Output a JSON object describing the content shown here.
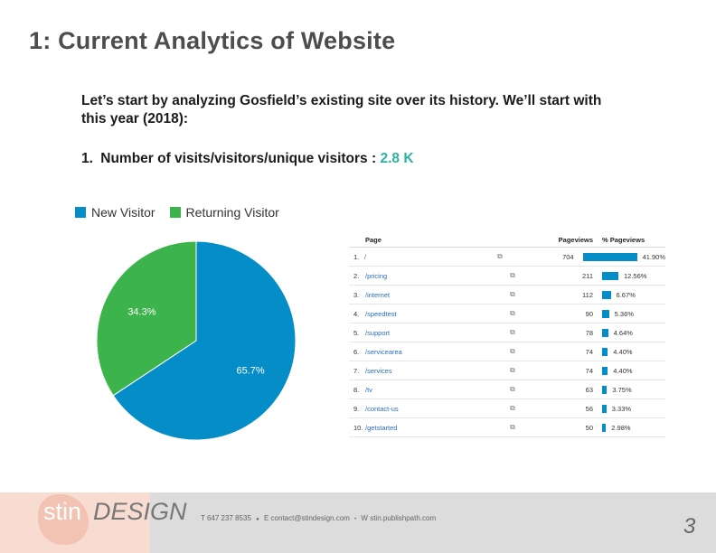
{
  "title": "1: Current Analytics of Website",
  "intro": "Let’s start by analyzing Gosfield’s existing site over its history. We’ll start with this year (2018):",
  "point": {
    "number": "1.",
    "label": "Number of visits/visitors/unique visitors :",
    "value": "2.8 K"
  },
  "legend": {
    "new_visitor": "New Visitor",
    "returning_visitor": "Returning Visitor"
  },
  "colors": {
    "new_visitor": "#058dc7",
    "returning_visitor": "#3cb44b",
    "metric": "#2bb5a0"
  },
  "chart_data": {
    "type": "pie",
    "categories": [
      "New Visitor",
      "Returning Visitor"
    ],
    "values": [
      65.7,
      34.3
    ],
    "labels": [
      "65.7%",
      "34.3%"
    ],
    "legend": "top"
  },
  "table": {
    "headers": {
      "page": "Page",
      "pageviews": "Pageviews",
      "pct": "% Pageviews"
    },
    "link_icon": "⧉",
    "rows": [
      {
        "idx": "1.",
        "page": "/",
        "pageviews": "704",
        "pct": "41.90%",
        "share": 41.9
      },
      {
        "idx": "2.",
        "page": "/pricing",
        "pageviews": "211",
        "pct": "12.56%",
        "share": 12.56
      },
      {
        "idx": "3.",
        "page": "/internet",
        "pageviews": "112",
        "pct": "6.67%",
        "share": 6.67
      },
      {
        "idx": "4.",
        "page": "/speedtest",
        "pageviews": "90",
        "pct": "5.36%",
        "share": 5.36
      },
      {
        "idx": "5.",
        "page": "/support",
        "pageviews": "78",
        "pct": "4.64%",
        "share": 4.64
      },
      {
        "idx": "6.",
        "page": "/servicearea",
        "pageviews": "74",
        "pct": "4.40%",
        "share": 4.4
      },
      {
        "idx": "7.",
        "page": "/services",
        "pageviews": "74",
        "pct": "4.40%",
        "share": 4.4
      },
      {
        "idx": "8.",
        "page": "/tv",
        "pageviews": "63",
        "pct": "3.75%",
        "share": 3.75
      },
      {
        "idx": "9.",
        "page": "/contact-us",
        "pageviews": "56",
        "pct": "3.33%",
        "share": 3.33
      },
      {
        "idx": "10.",
        "page": "/getstarted",
        "pageviews": "50",
        "pct": "2.98%",
        "share": 2.98
      }
    ]
  },
  "footer": {
    "logo_part1": "stin",
    "logo_part2": "DESIGN",
    "phone": "T  647 237 8535",
    "email": "E  contact@stindesign.com",
    "web": "W stin.publishpath.com",
    "page_number": "3"
  }
}
